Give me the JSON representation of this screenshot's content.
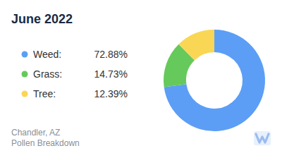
{
  "chart_data": {
    "type": "donut",
    "title": "June 2022",
    "categories": [
      "Weed:",
      "Grass:",
      "Tree:"
    ],
    "values": [
      72.88,
      14.73,
      12.39
    ],
    "value_labels": [
      "72.88%",
      "14.73%",
      "12.39%"
    ],
    "colors": [
      "#5c9ef6",
      "#66c95b",
      "#fad655"
    ],
    "legend": "left",
    "annotations": [
      "Chandler, AZ",
      "Pollen Breakdown"
    ]
  }
}
